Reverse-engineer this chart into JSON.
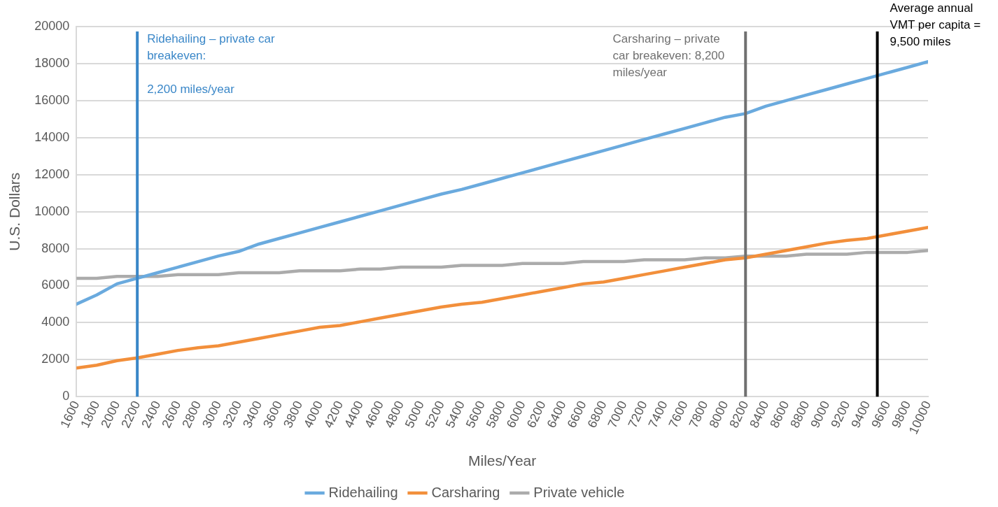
{
  "chart_data": {
    "type": "line",
    "xlabel": "Miles/Year",
    "ylabel": "U.S. Dollars",
    "x": [
      1600,
      1800,
      2000,
      2200,
      2400,
      2600,
      2800,
      3000,
      3200,
      3400,
      3600,
      3800,
      4000,
      4200,
      4400,
      4600,
      4800,
      5000,
      5200,
      5400,
      5600,
      5800,
      6000,
      6200,
      6400,
      6600,
      6800,
      7000,
      7200,
      7400,
      7600,
      7800,
      8000,
      8200,
      8400,
      8600,
      8800,
      9000,
      9200,
      9400,
      9600,
      9800,
      10000
    ],
    "series": [
      {
        "name": "Ridehailing",
        "color": "#6aaade",
        "values": [
          5000,
          5500,
          6100,
          6400,
          6700,
          7000,
          7300,
          7600,
          7850,
          8250,
          8550,
          8850,
          9150,
          9450,
          9750,
          10050,
          10350,
          10650,
          10950,
          11200,
          11500,
          11800,
          12100,
          12400,
          12700,
          13000,
          13300,
          13600,
          13900,
          14200,
          14500,
          14800,
          15100,
          15300,
          15700,
          16000,
          16300,
          16600,
          16900,
          17200,
          17500,
          17800,
          18100
        ]
      },
      {
        "name": "Carsharing",
        "color": "#f28f3b",
        "values": [
          1550,
          1700,
          1950,
          2100,
          2300,
          2500,
          2650,
          2750,
          2950,
          3150,
          3350,
          3550,
          3750,
          3850,
          4050,
          4250,
          4450,
          4650,
          4850,
          5000,
          5100,
          5300,
          5500,
          5700,
          5900,
          6100,
          6200,
          6400,
          6600,
          6800,
          7000,
          7200,
          7400,
          7500,
          7700,
          7900,
          8100,
          8300,
          8450,
          8550,
          8750,
          8950,
          9150
        ]
      },
      {
        "name": "Private vehicle",
        "color": "#ababab",
        "values": [
          6400,
          6400,
          6500,
          6500,
          6500,
          6600,
          6600,
          6600,
          6700,
          6700,
          6700,
          6800,
          6800,
          6800,
          6900,
          6900,
          7000,
          7000,
          7000,
          7100,
          7100,
          7100,
          7200,
          7200,
          7200,
          7300,
          7300,
          7300,
          7400,
          7400,
          7400,
          7500,
          7500,
          7600,
          7600,
          7600,
          7700,
          7700,
          7700,
          7800,
          7800,
          7800,
          7900
        ]
      }
    ],
    "xlim": [
      1600,
      10000
    ],
    "xticks": [
      1600,
      1800,
      2000,
      2200,
      2400,
      2600,
      2800,
      3000,
      3200,
      3400,
      3600,
      3800,
      4000,
      4200,
      4400,
      4600,
      4800,
      5000,
      5200,
      5400,
      5600,
      5800,
      6000,
      6200,
      6400,
      6600,
      6800,
      7000,
      7200,
      7400,
      7600,
      7800,
      8000,
      8200,
      8400,
      8600,
      8800,
      9000,
      9200,
      9400,
      9600,
      9800,
      10000
    ],
    "ylim": [
      0,
      20000
    ],
    "yticks": [
      0,
      2000,
      4000,
      6000,
      8000,
      10000,
      12000,
      14000,
      16000,
      18000,
      20000
    ],
    "grid": "y",
    "legend": "bottom",
    "marker": "none",
    "line_style": "solid",
    "ref_lines": [
      {
        "axis": "x",
        "value": 2200,
        "label": "Ridehailing – private car\nbreakeven:\n\n2,200 miles/year",
        "color": "#3a87c8"
      },
      {
        "axis": "x",
        "value": 8200,
        "label": "Carsharing – private\ncar breakeven: 8,200\nmiles/year",
        "color": "#707070"
      },
      {
        "axis": "x",
        "value": 9500,
        "label": "Average annual\nVMT per capita =\n9,500 miles",
        "color": "#000000"
      }
    ]
  }
}
